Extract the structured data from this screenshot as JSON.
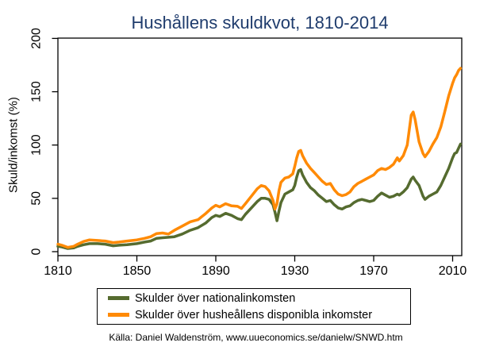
{
  "page": {
    "title": "Hushållens skuldkvot, 1810-2014",
    "source": "Källa: Daniel Waldenström, www.uueconomics.se/danielw/SNWD.htm"
  },
  "colors": {
    "title": "#1f3c6d",
    "axis": "#000000",
    "green_series": "#556b2f",
    "orange_series": "#ff8a05"
  },
  "chart_data": {
    "type": "line",
    "title": "Hushållens skuldkvot, 1810-2014",
    "xlabel": "",
    "ylabel": "Skuld/inkomst (%)",
    "xlim": [
      1810,
      2014.6
    ],
    "ylim": [
      0,
      200
    ],
    "x_ticks": [
      1810,
      1850,
      1890,
      1930,
      1970,
      2010
    ],
    "y_ticks": [
      0,
      50,
      100,
      150,
      200
    ],
    "grid": false,
    "frame": "box",
    "legend_position": "bottom-box",
    "x": [
      1810,
      1812,
      1815,
      1818,
      1820,
      1823,
      1826,
      1830,
      1834,
      1838,
      1841,
      1845,
      1850,
      1854,
      1857,
      1860,
      1863,
      1866,
      1869,
      1873,
      1877,
      1881,
      1885,
      1888,
      1890,
      1892,
      1895,
      1898,
      1901,
      1903,
      1905,
      1908,
      1911,
      1913,
      1915,
      1917,
      1919,
      1920,
      1921,
      1922,
      1923,
      1925,
      1927,
      1929,
      1930,
      1931,
      1932,
      1933,
      1934,
      1936,
      1938,
      1940,
      1942,
      1944,
      1946,
      1948,
      1950,
      1952,
      1954,
      1956,
      1958,
      1960,
      1962,
      1964,
      1966,
      1968,
      1970,
      1972,
      1974,
      1976,
      1978,
      1980,
      1982,
      1983,
      1985,
      1987,
      1989,
      1990,
      1991,
      1993,
      1995,
      1996,
      1998,
      2000,
      2002,
      2004,
      2006,
      2008,
      2010,
      2011,
      2012,
      2013,
      2014
    ],
    "series": [
      {
        "name": "Skulder över nationalinkomsten",
        "color": "#556b2f",
        "values": [
          5,
          4.5,
          3,
          3.5,
          5,
          6.5,
          7.5,
          7.5,
          7,
          5.5,
          6,
          6.5,
          7.5,
          9,
          10,
          12.5,
          13,
          13.5,
          14,
          16.5,
          20,
          22.5,
          27,
          32,
          34,
          33,
          36,
          34,
          31,
          30,
          35,
          41,
          47,
          50,
          50,
          49,
          44,
          37,
          29,
          38,
          46,
          54,
          56,
          58,
          62,
          70,
          76,
          77,
          72,
          65,
          60,
          57,
          53,
          50,
          47,
          48,
          44,
          41,
          40,
          42,
          43,
          46,
          48,
          49,
          48,
          47,
          48,
          52,
          55,
          53,
          51,
          52,
          54,
          53,
          56,
          60,
          68,
          70,
          67,
          62,
          52,
          49,
          52,
          54,
          56,
          62,
          70,
          78,
          88,
          92,
          93,
          97,
          101
        ]
      },
      {
        "name": "Skulder över husheållens disponibla inkomster",
        "color": "#ff8a05",
        "values": [
          7,
          6,
          4,
          5,
          7,
          9.5,
          11,
          10.5,
          10,
          8.5,
          9,
          10,
          11,
          12.5,
          14,
          17,
          17.5,
          16.5,
          20,
          24,
          28,
          30,
          36,
          41,
          43.5,
          42,
          45,
          43,
          42.5,
          40.5,
          45,
          52,
          59,
          62,
          61,
          57,
          48,
          40,
          45,
          57,
          65,
          69,
          70,
          73,
          80,
          88,
          94,
          95,
          90,
          83,
          78,
          74,
          70,
          66,
          63,
          64,
          58,
          54,
          52.5,
          53.5,
          56,
          61,
          64,
          66,
          68,
          70,
          72,
          76,
          78,
          77,
          79,
          82,
          88,
          85,
          90,
          100,
          128,
          131,
          124,
          103,
          92,
          89,
          94,
          101,
          107,
          117,
          131,
          146,
          158,
          163,
          166,
          170,
          172
        ]
      }
    ]
  }
}
